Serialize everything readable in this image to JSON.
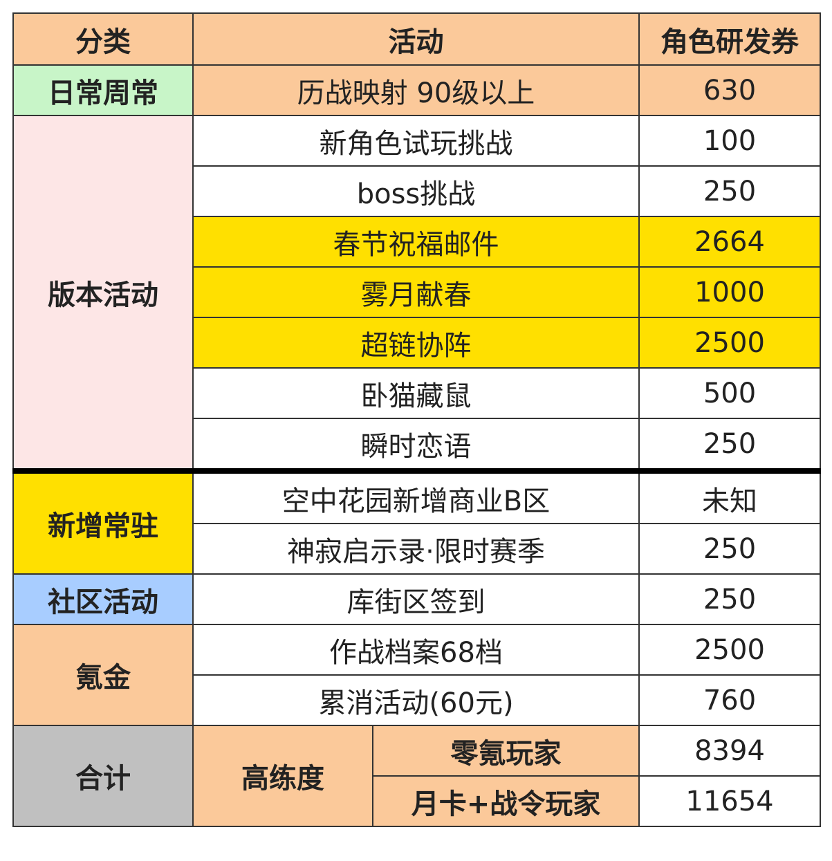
{
  "header": [
    "分类",
    "活动",
    "角色研发券"
  ],
  "groups": [
    {
      "category": "日常周常",
      "rows": [
        [
          "历战映射 90级以上",
          "630"
        ]
      ]
    },
    {
      "category": "版本活动",
      "rows": [
        [
          "新角色试玩挑战",
          "100"
        ],
        [
          "boss挑战",
          "250"
        ],
        [
          "春节祝福邮件",
          "2664"
        ],
        [
          "雾月献春",
          "1000"
        ],
        [
          "超链协阵",
          "2500"
        ],
        [
          "卧猫藏鼠",
          "500"
        ],
        [
          "瞬时恋语",
          "250"
        ]
      ]
    },
    {
      "category": "新增常驻",
      "rows": [
        [
          "空中花园新增商业B区",
          "未知"
        ],
        [
          "神寂启示录·限时赛季",
          "250"
        ]
      ]
    },
    {
      "category": "社区活动",
      "rows": [
        [
          "库街区签到",
          "250"
        ]
      ]
    },
    {
      "category": "氪金",
      "rows": [
        [
          "作战档案68档",
          "2500"
        ],
        [
          "累消活动(60元)",
          "760"
        ]
      ]
    }
  ],
  "total": {
    "category": "合计",
    "level": "高练度",
    "rows": [
      [
        "零氪玩家",
        "8394"
      ],
      [
        "月卡+战令玩家",
        "11654"
      ]
    ]
  }
}
